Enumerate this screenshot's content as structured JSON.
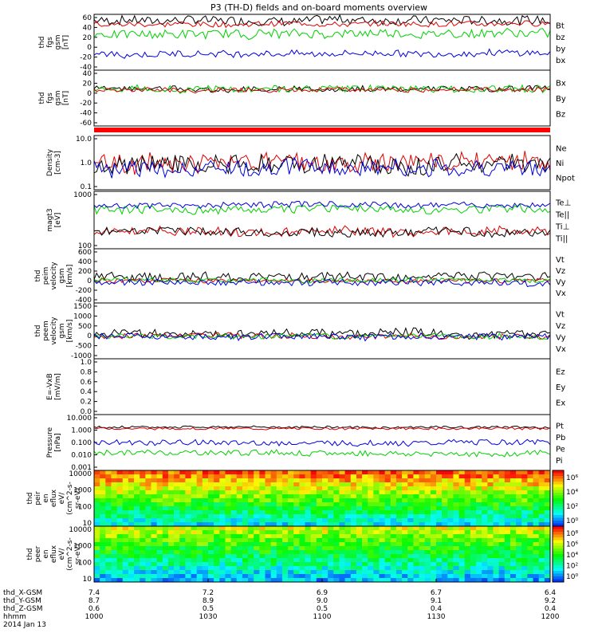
{
  "title": "P3 (TH-D) fields and on-board moments overview",
  "colors": {
    "black": "#000000",
    "red": "#e00000",
    "green": "#00d000",
    "blue": "#0000dd"
  },
  "chart_data": [
    {
      "type": "line",
      "id": "fgs_gsm",
      "ylabel": [
        "thd",
        "fgs",
        "gsm",
        "[nT]"
      ],
      "ylim": [
        -40,
        60
      ],
      "y_ticks": [
        "60",
        "40",
        "20",
        "0",
        "-20",
        "-40"
      ],
      "legend": [
        "Bt",
        "bz",
        "by",
        "bx"
      ],
      "series": [
        {
          "name": "Bt",
          "color": "black",
          "base": 50,
          "amp": 8
        },
        {
          "name": "bz",
          "color": "red",
          "base": 43,
          "amp": 5
        },
        {
          "name": "by",
          "color": "green",
          "base": 25,
          "amp": 8
        },
        {
          "name": "bx",
          "color": "blue",
          "base": -10,
          "amp": 6
        }
      ]
    },
    {
      "type": "line",
      "id": "fgs_dsl",
      "ylabel": [
        "thd",
        "fgs",
        "gsm",
        "[nT]"
      ],
      "ylim": [
        -80,
        40
      ],
      "y_ticks": [
        "40",
        "20",
        "0",
        "-20",
        "-40",
        "-60"
      ],
      "legend": [
        "Bx",
        "By",
        "Bz"
      ],
      "series": [
        {
          "name": "Bx",
          "color": "black",
          "base": 0,
          "amp": 6
        },
        {
          "name": "By",
          "color": "green",
          "base": 0,
          "amp": 8
        },
        {
          "name": "Bz",
          "color": "red",
          "base": -2,
          "amp": 5
        }
      ]
    },
    {
      "type": "line",
      "log": true,
      "id": "density",
      "ylabel": [
        "Density",
        "[cm-3]"
      ],
      "ylim": [
        0.1,
        10
      ],
      "y_ticks": [
        "10.0",
        "1.0",
        "0.1"
      ],
      "legend": [
        "Ne",
        "Ni",
        "Npot"
      ],
      "series": [
        {
          "name": "Ne",
          "color": "red",
          "base": 0.0,
          "amp": 0.35
        },
        {
          "name": "Ni",
          "color": "black",
          "base": -0.1,
          "amp": 0.35
        },
        {
          "name": "Npot",
          "color": "blue",
          "base": -0.2,
          "amp": 0.3
        }
      ]
    },
    {
      "type": "line",
      "log": true,
      "id": "temperature",
      "ylabel": [
        "magt3",
        "[eV]"
      ],
      "ylim": [
        30,
        3000
      ],
      "y_ticks": [
        "1000",
        "100"
      ],
      "legend": [
        "Te⊥",
        "Te||",
        "Ti⊥",
        "Ti||"
      ],
      "series": [
        {
          "name": "Te⊥",
          "color": "red",
          "base": 2.1,
          "amp": 0.15
        },
        {
          "name": "Te||",
          "color": "black",
          "base": 2.05,
          "amp": 0.15
        },
        {
          "name": "Ti⊥",
          "color": "green",
          "base": 2.85,
          "amp": 0.15
        },
        {
          "name": "Ti||",
          "color": "blue",
          "base": 3.0,
          "amp": 0.1
        }
      ]
    },
    {
      "type": "line",
      "id": "peim_velocity",
      "ylabel": [
        "thd",
        "peim",
        "velocity",
        "gsm",
        "[km/s]"
      ],
      "ylim": [
        -400,
        600
      ],
      "y_ticks": [
        "600",
        "400",
        "200",
        "0",
        "-200",
        "-400"
      ],
      "legend": [
        "Vt",
        "Vz",
        "Vy",
        "Vx"
      ],
      "series": [
        {
          "name": "Vt",
          "color": "black",
          "base": 80,
          "amp": 80
        },
        {
          "name": "Vz",
          "color": "red",
          "base": 10,
          "amp": 40
        },
        {
          "name": "Vy",
          "color": "green",
          "base": 20,
          "amp": 40
        },
        {
          "name": "Vx",
          "color": "blue",
          "base": -20,
          "amp": 60
        }
      ]
    },
    {
      "type": "line",
      "id": "peem_velocity",
      "ylabel": [
        "thd",
        "peem",
        "velocity",
        "gsm",
        "[km/s]"
      ],
      "ylim": [
        -1000,
        1500
      ],
      "y_ticks": [
        "1500",
        "1000",
        "500",
        "0",
        "-500",
        "-1000"
      ],
      "legend": [
        "Vt",
        "Vz",
        "Vy",
        "Vx"
      ],
      "series": [
        {
          "name": "Vt",
          "color": "black",
          "base": 150,
          "amp": 200
        },
        {
          "name": "Vz",
          "color": "red",
          "base": 0,
          "amp": 120
        },
        {
          "name": "Vy",
          "color": "green",
          "base": 0,
          "amp": 120
        },
        {
          "name": "Vx",
          "color": "blue",
          "base": 0,
          "amp": 140
        }
      ]
    },
    {
      "type": "line",
      "id": "efield",
      "ylabel": [
        "E=-VxB",
        "[mV/m]"
      ],
      "ylim": [
        0,
        1
      ],
      "y_ticks": [
        "1.0",
        "0.8",
        "0.6",
        "0.4",
        "0.2",
        "0.0"
      ],
      "legend": [
        "Ez",
        "Ey",
        "Ex"
      ],
      "series": []
    },
    {
      "type": "line",
      "log": true,
      "id": "pressure",
      "ylabel": [
        "Pressure",
        "[nPa]"
      ],
      "ylim": [
        0.001,
        10
      ],
      "y_ticks": [
        "10.000",
        "1.000",
        "0.100",
        "0.010",
        "0.001"
      ],
      "legend": [
        "Pt",
        "Pb",
        "Pe",
        "Pi"
      ],
      "series": [
        {
          "name": "Pt",
          "color": "black",
          "base": 0.1,
          "amp": 0.08
        },
        {
          "name": "Pb",
          "color": "red",
          "base": 0.0,
          "amp": 0.08
        },
        {
          "name": "Pe",
          "color": "green",
          "base": -1.75,
          "amp": 0.2
        },
        {
          "name": "Pi",
          "color": "blue",
          "base": -1.0,
          "amp": 0.2
        }
      ]
    },
    {
      "type": "heatmap",
      "id": "peir_flux",
      "ylabel": [
        "thd",
        "peir",
        "en",
        "eflux",
        "eV/",
        "(cm^2-s-",
        "sr-eV)"
      ],
      "y_ticks": [
        "10000",
        "1000",
        "100",
        "10"
      ],
      "colorbar_ticks": [
        "10⁶",
        "10⁴",
        "10²",
        "10⁰"
      ],
      "top_level": 0.92,
      "low_level": 0.2
    },
    {
      "type": "heatmap",
      "id": "peer_flux",
      "ylabel": [
        "thd",
        "peer",
        "en",
        "eflux",
        "eV/",
        "(cm^2-s-",
        "sr-eV)"
      ],
      "y_ticks": [
        "10000",
        "1000",
        "100",
        "10"
      ],
      "colorbar_ticks": [
        "10⁸",
        "10⁶",
        "10⁴",
        "10²",
        "10⁰"
      ],
      "top_level": 0.7,
      "low_level": 0.15
    }
  ],
  "x_axis": {
    "rows": [
      {
        "label": "thd_X-GSM",
        "values": [
          "7.4",
          "7.2",
          "6.9",
          "6.7",
          "6.4"
        ]
      },
      {
        "label": "thd_Y-GSM",
        "values": [
          "8.7",
          "8.9",
          "9.0",
          "9.1",
          "9.2"
        ]
      },
      {
        "label": "thd_Z-GSM",
        "values": [
          "0.6",
          "0.5",
          "0.5",
          "0.4",
          "0.4"
        ]
      },
      {
        "label": "hhmm",
        "values": [
          "1000",
          "1030",
          "1100",
          "1130",
          "1200"
        ]
      }
    ],
    "date": "2014 Jan 13"
  }
}
